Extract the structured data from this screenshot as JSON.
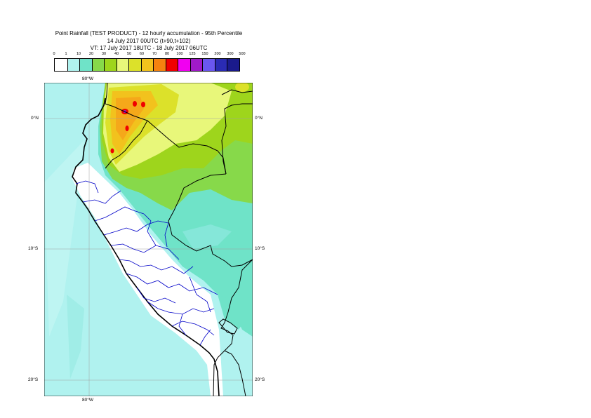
{
  "title": {
    "line1": "Point Rainfall (TEST PRODUCT) - 12 hourly accumulation - 95th Percentile",
    "line2": "14 July 2017 00UTC (t+90,t+102)",
    "line3": "VT: 17 July 2017 18UTC - 18 July 2017 06UTC"
  },
  "legend": {
    "labels": [
      "0",
      "1",
      "10",
      "20",
      "30",
      "40",
      "50",
      "60",
      "70",
      "80",
      "100",
      "125",
      "150",
      "200",
      "300",
      "500"
    ],
    "colors": [
      "#ffffff",
      "#b0f2ef",
      "#6fe3c8",
      "#87d94a",
      "#9ed51c",
      "#e8f77a",
      "#dce12a",
      "#f2c21d",
      "#f5820f",
      "#f00000",
      "#f100f1",
      "#a01ac8",
      "#6a57f0",
      "#2a2bb4",
      "#1a1a8c",
      "#0b0b3c"
    ]
  },
  "grid": {
    "lon_top": "80°W",
    "lon_bottom": "80°W",
    "lat_0_left": "0°N",
    "lat_0_right": "0°N",
    "lat_10_left": "10°S",
    "lat_10_right": "10°S",
    "lat_20_left": "20°S",
    "lat_20_right": "20°S"
  },
  "map": {
    "ocean_color": "#b0f2ef",
    "coast_color": "#000000",
    "admin_color": "#0000c8"
  }
}
